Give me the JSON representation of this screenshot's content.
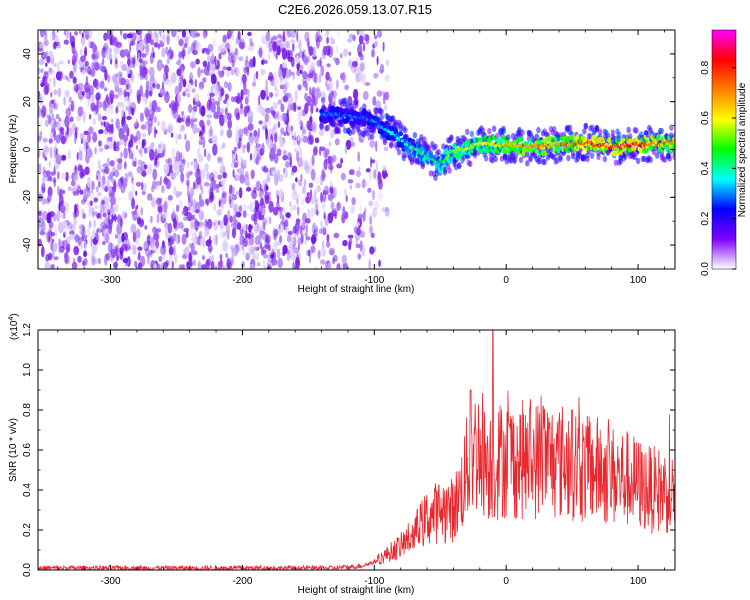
{
  "figure_title": "C2E6.2026.059.13.07.R15",
  "colors": {
    "snr_line": "#e8282e",
    "frame": "#000000"
  },
  "chart_data": [
    {
      "type": "heatmap",
      "title": "C2E6.2026.059.13.07.R15",
      "xlabel": "Height of straight line (km)",
      "ylabel": "Frequency (Hz)",
      "xlim": [
        -355,
        128
      ],
      "ylim": [
        -50,
        50
      ],
      "xticks": [
        -300,
        -200,
        -100,
        0,
        100
      ],
      "xtick_labels": [
        "-300",
        "-200",
        "-100",
        "0",
        "100"
      ],
      "yticks": [
        -40,
        -20,
        0,
        20,
        40
      ],
      "ytick_labels": [
        "-40",
        "-20",
        "0",
        "20",
        "40"
      ],
      "colorbar": {
        "label": "Normalized spectral amplitude",
        "range": [
          0,
          0.95
        ],
        "ticks": [
          0.0,
          0.2,
          0.4,
          0.6,
          0.8
        ],
        "tick_labels": [
          "0.0",
          "0.2",
          "0.4",
          "0.6",
          "0.8"
        ],
        "colormap": [
          "#ffffff",
          "#7f00ff",
          "#0000ff",
          "#00ffff",
          "#00ff00",
          "#ffff00",
          "#ff8000",
          "#ff0000",
          "#ff00ff"
        ]
      },
      "noise_region": {
        "x_range": [
          -355,
          -110
        ],
        "amplitude": 0.1
      },
      "signal_ridge": {
        "x": [
          -140,
          -120,
          -105,
          -90,
          -75,
          -60,
          -50,
          -40,
          -20,
          0,
          20,
          40,
          60,
          80,
          100,
          128
        ],
        "frequency": [
          15,
          14,
          13,
          8,
          2,
          -3,
          -6,
          -1,
          2,
          2,
          1,
          2,
          3,
          1,
          2,
          3
        ],
        "amplitude": [
          0.3,
          0.3,
          0.3,
          0.35,
          0.4,
          0.45,
          0.45,
          0.55,
          0.6,
          0.65,
          0.7,
          0.7,
          0.8,
          0.85,
          0.8,
          0.7
        ]
      }
    },
    {
      "type": "line",
      "xlabel": "Height of straight line (km)",
      "ylabel": "SNR (10 * v/v)",
      "y_scale_label": "(x10",
      "y_scale_exponent": "4",
      "y_scale_close": ")",
      "xlim": [
        -355,
        128
      ],
      "ylim": [
        0,
        1.2
      ],
      "xticks": [
        -300,
        -200,
        -100,
        0,
        100
      ],
      "xtick_labels": [
        "-300",
        "-200",
        "-100",
        "0",
        "100"
      ],
      "yticks": [
        0.0,
        0.2,
        0.4,
        0.6,
        0.8,
        1.0,
        1.2
      ],
      "ytick_labels": [
        "0.0",
        "0.2",
        "0.4",
        "0.6",
        "0.8",
        "1.0",
        "1.2"
      ],
      "series": [
        {
          "name": "SNR",
          "x": [
            -355,
            -300,
            -200,
            -130,
            -110,
            -100,
            -90,
            -80,
            -70,
            -60,
            -50,
            -40,
            -35,
            -30,
            -25,
            -20,
            -15,
            -10,
            -5,
            0,
            10,
            20,
            30,
            40,
            50,
            60,
            70,
            80,
            90,
            100,
            110,
            120,
            128
          ],
          "values": [
            0.01,
            0.01,
            0.01,
            0.01,
            0.02,
            0.04,
            0.08,
            0.12,
            0.18,
            0.26,
            0.3,
            0.3,
            0.38,
            0.5,
            0.58,
            0.62,
            0.55,
            0.52,
            0.55,
            0.56,
            0.55,
            0.55,
            0.56,
            0.54,
            0.55,
            0.5,
            0.5,
            0.47,
            0.46,
            0.43,
            0.4,
            0.4,
            0.38
          ],
          "peaks": [
            {
              "x": -27,
              "value": 0.9
            },
            {
              "x": -10,
              "value": 1.22
            },
            {
              "x": 28,
              "value": 0.82
            },
            {
              "x": 50,
              "value": 0.8
            }
          ]
        }
      ]
    }
  ]
}
